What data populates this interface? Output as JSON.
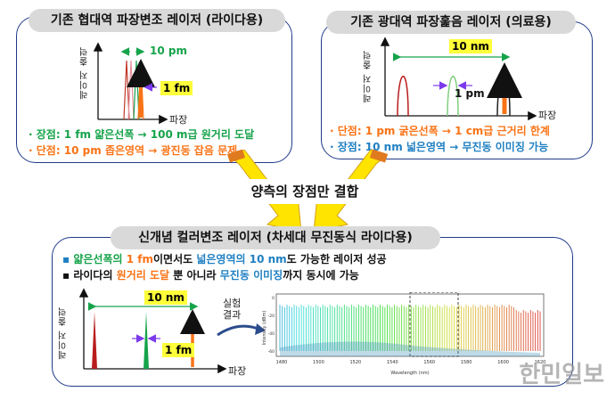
{
  "top_left": {
    "title": "기존 협대역 파장변조 레이저 (라이다용)",
    "y_axis": "레이저 출력",
    "x_axis": "파장",
    "range_label": "10 pm",
    "width_label": "1 fm",
    "pro": "· 장점: 1 fm 얇은선폭  →  100 m급 원거리 도달",
    "con": "· 단점: 10 pm 좁은영역 →  광진동 잡음 문제"
  },
  "top_right": {
    "title": "기존 광대역 파장훑음 레이저 (의료용)",
    "y_axis": "레이저 출력",
    "x_axis": "파장",
    "range_label": "10 nm",
    "width_label": "1 pm",
    "con": "· 단점: 1 pm 굵은선폭 → 1 cm급 근거리 한계",
    "pro": "· 장점: 10 nm 넓은영역 → 무진동 이미징 가능"
  },
  "center": {
    "label": "양측의 장점만 결합"
  },
  "bottom": {
    "title": "신개념 컬러변조 레이저 (차세대 무진동식 라이다용)",
    "bullet1_parts": [
      "얇은선폭의 ",
      "1 fm",
      "이면서도 ",
      "넓은영역의 ",
      "10 nm",
      "도 가능한 레이저 성공"
    ],
    "bullet2_parts": [
      "라이다의 ",
      "원거리 도달",
      " 뿐 아니라 ",
      "무진동 이미징",
      "까지 동시에 가능"
    ],
    "y_axis": "레이저 출력",
    "x_axis": "파장",
    "range_label": "10 nm",
    "width_label": "1 fm",
    "experiment_label": "실험\n결과",
    "spectrum": {
      "ylabel": "Intensity (dBm)",
      "xlabel": "Wavelength (nm)",
      "x_ticks": [
        "1480",
        "1500",
        "1520",
        "1540",
        "1560",
        "1580",
        "1600",
        "1620"
      ],
      "y_ticks": [
        "0",
        "-20",
        "-40",
        "-60"
      ]
    }
  },
  "watermark": "한민일보",
  "colors": {
    "border": "#1f3a8a",
    "title_bg": "#d9d9d9",
    "pro_text": "#16a34a",
    "con_text": "#f97316",
    "arrow_yellow": "#ffe400",
    "spike_red": "#b91c1c",
    "spike_green": "#16a34a",
    "spike_orange": "#f97316",
    "highlight": "#ffff3a"
  }
}
